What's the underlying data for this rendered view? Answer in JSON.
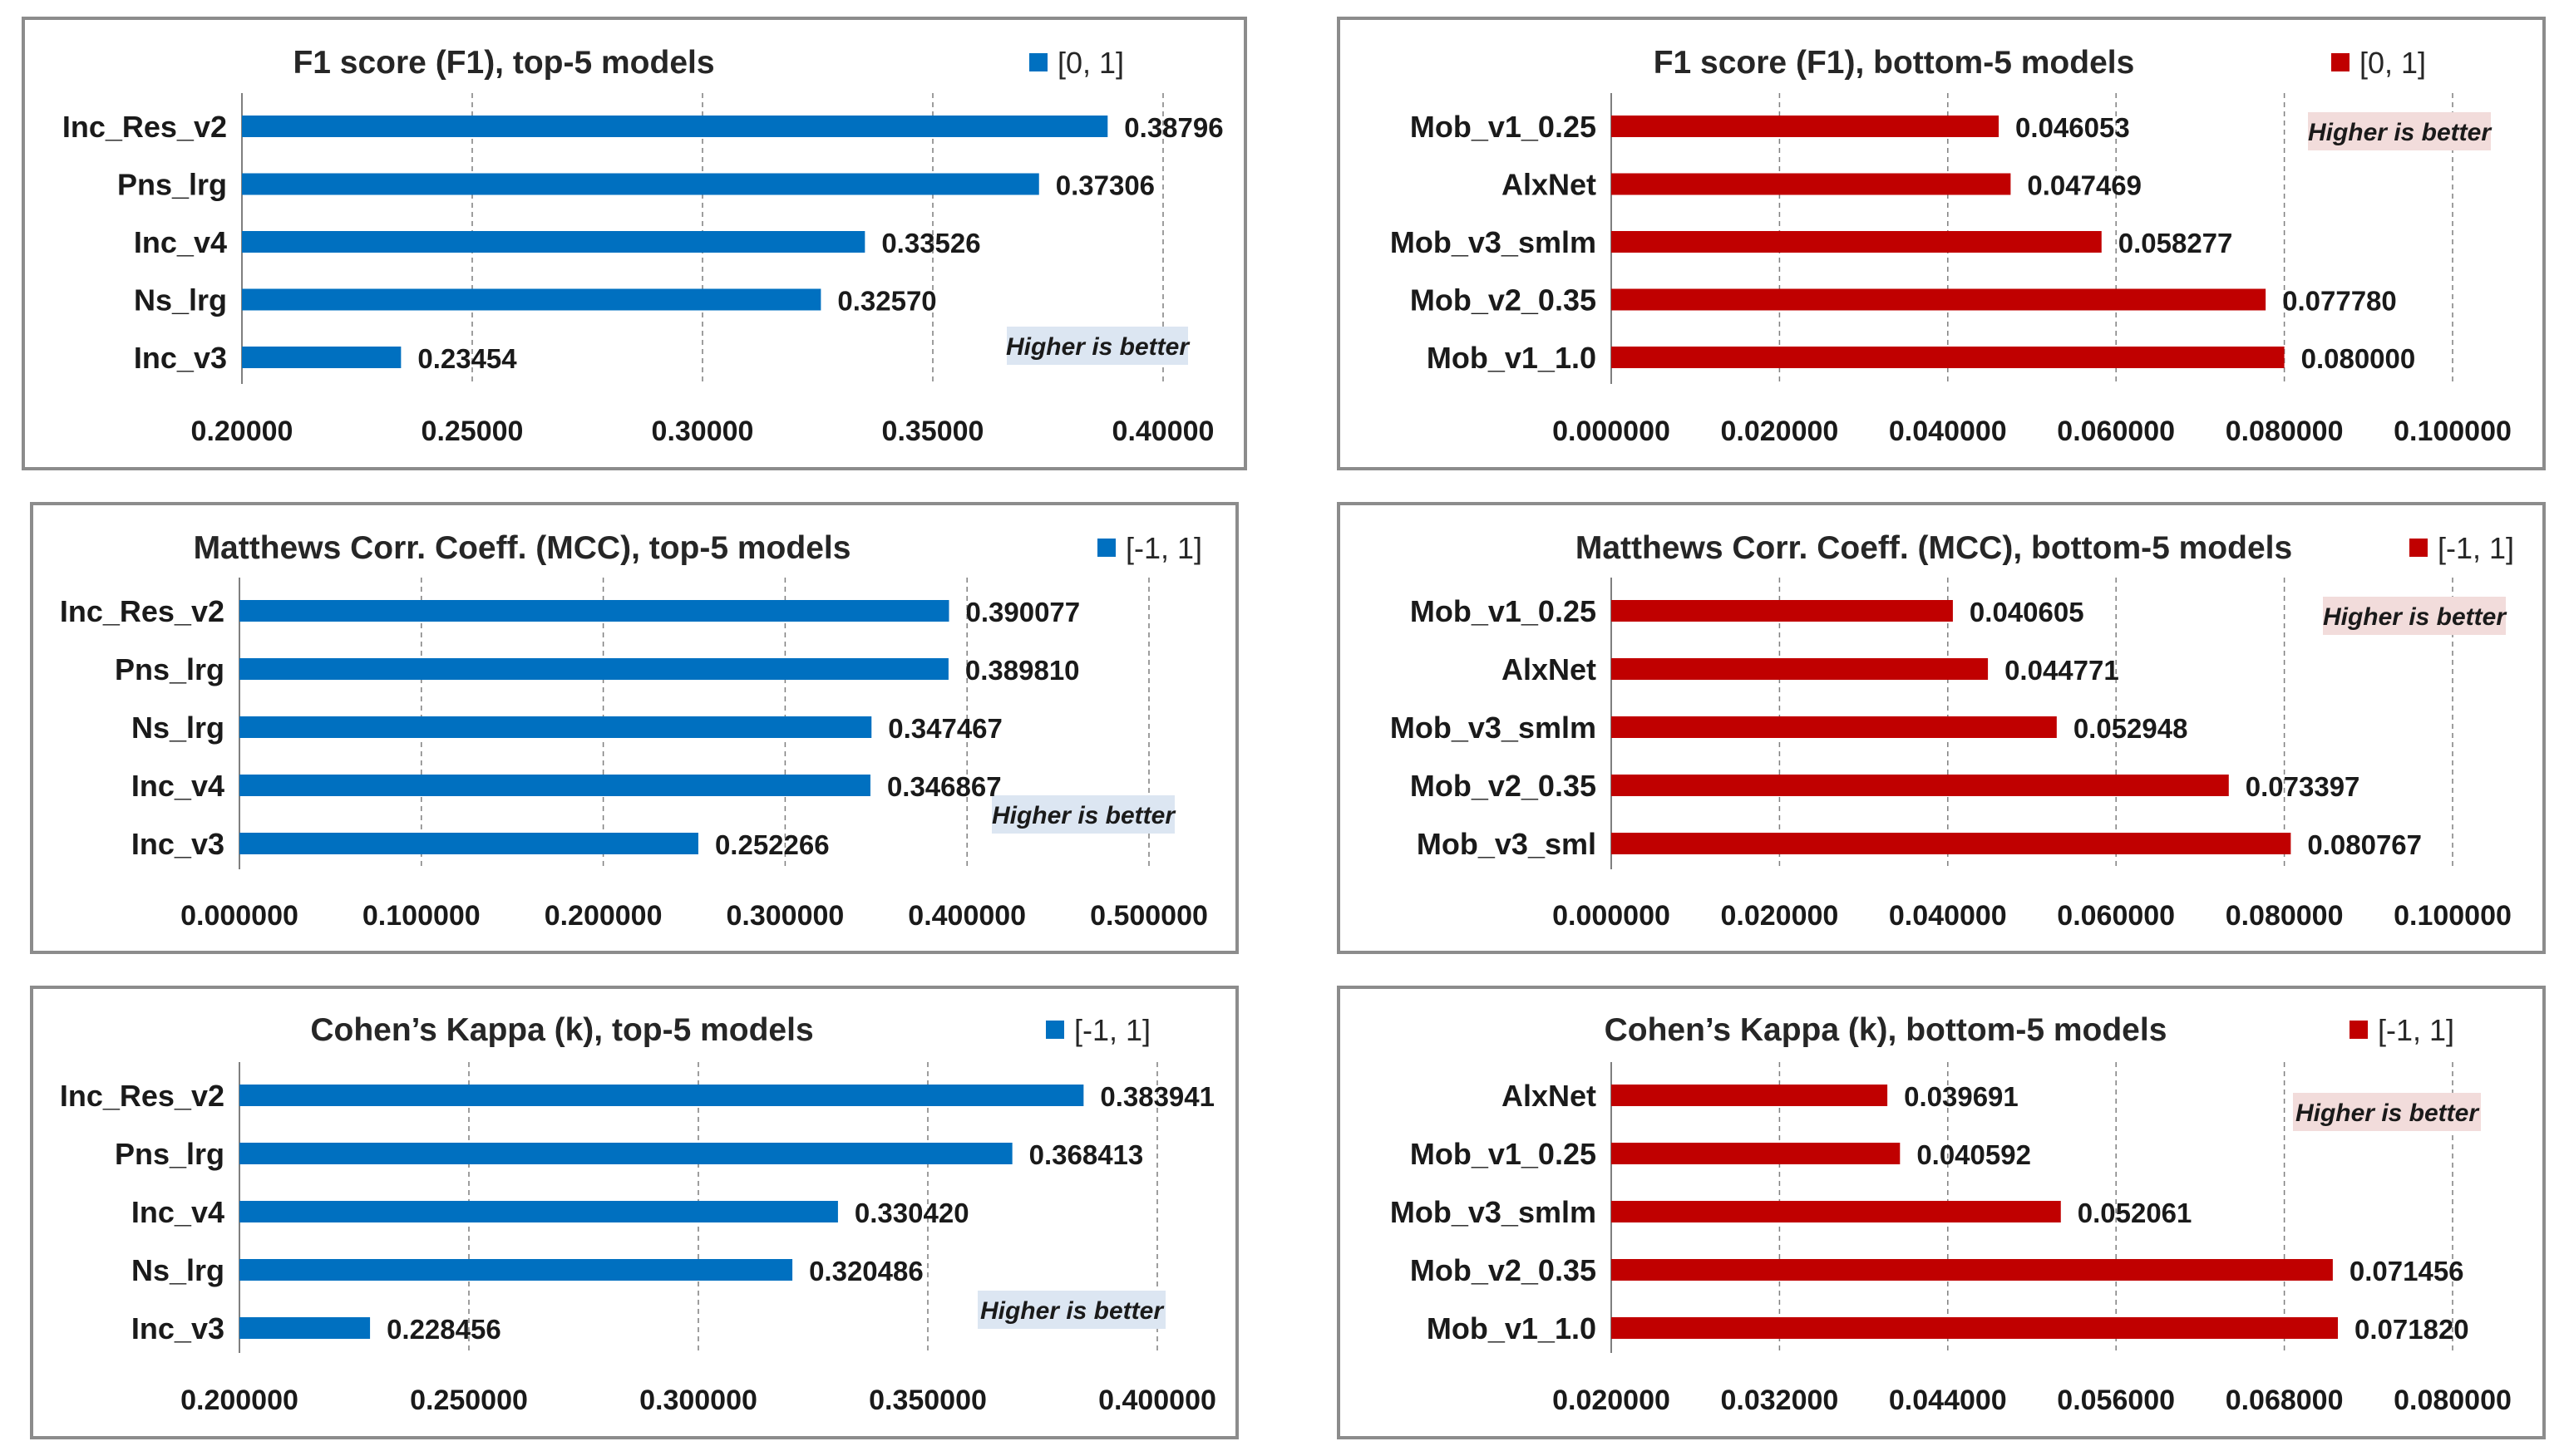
{
  "chart_data": [
    {
      "type": "bar",
      "orientation": "horizontal",
      "title": "F1 score (F1), top-5 models",
      "legend": "[0, 1]",
      "note": "Higher is better",
      "color": "#0070c0",
      "categories": [
        "Inc_Res_v2",
        "Pns_lrg",
        "Inc_v4",
        "Ns_lrg",
        "Inc_v3"
      ],
      "values": [
        0.38796,
        0.37306,
        0.33526,
        0.3257,
        0.23454
      ],
      "value_labels": [
        "0.38796",
        "0.37306",
        "0.33526",
        "0.32570",
        "0.23454"
      ],
      "xlim": [
        0.2,
        0.4
      ],
      "ticks": [
        0.2,
        0.25,
        0.3,
        0.35,
        0.4
      ],
      "tick_labels": [
        "0.20000",
        "0.25000",
        "0.30000",
        "0.35000",
        "0.40000"
      ]
    },
    {
      "type": "bar",
      "orientation": "horizontal",
      "title": "F1 score (F1), bottom-5 models",
      "legend": "[0, 1]",
      "note": "Higher is better",
      "color": "#c00000",
      "categories": [
        "Mob_v1_0.25",
        "AlxNet",
        "Mob_v3_smlm",
        "Mob_v2_0.35",
        "Mob_v1_1.0"
      ],
      "values": [
        0.046053,
        0.047469,
        0.058277,
        0.07778,
        0.08
      ],
      "value_labels": [
        "0.046053",
        "0.047469",
        "0.058277",
        "0.077780",
        "0.080000"
      ],
      "xlim": [
        0,
        0.1
      ],
      "ticks": [
        0,
        0.02,
        0.04,
        0.06,
        0.08,
        0.1
      ],
      "tick_labels": [
        "0.000000",
        "0.020000",
        "0.040000",
        "0.060000",
        "0.080000",
        "0.100000"
      ]
    },
    {
      "type": "bar",
      "orientation": "horizontal",
      "title": "Matthews Corr. Coeff. (MCC), top-5 models",
      "legend": "[-1, 1]",
      "note": "Higher is better",
      "color": "#0070c0",
      "categories": [
        "Inc_Res_v2",
        "Pns_lrg",
        "Ns_lrg",
        "Inc_v4",
        "Inc_v3"
      ],
      "values": [
        0.390077,
        0.38981,
        0.347467,
        0.346867,
        0.252266
      ],
      "value_labels": [
        "0.390077",
        "0.389810",
        "0.347467",
        "0.346867",
        "0.252266"
      ],
      "xlim": [
        0,
        0.5
      ],
      "ticks": [
        0,
        0.1,
        0.2,
        0.3,
        0.4,
        0.5
      ],
      "tick_labels": [
        "0.000000",
        "0.100000",
        "0.200000",
        "0.300000",
        "0.400000",
        "0.500000"
      ]
    },
    {
      "type": "bar",
      "orientation": "horizontal",
      "title": "Matthews Corr. Coeff. (MCC), bottom-5 models",
      "legend": "[-1, 1]",
      "note": "Higher is better",
      "color": "#c00000",
      "categories": [
        "Mob_v1_0.25",
        "AlxNet",
        "Mob_v3_smlm",
        "Mob_v2_0.35",
        "Mob_v3_sml"
      ],
      "values": [
        0.040605,
        0.044771,
        0.052948,
        0.073397,
        0.080767
      ],
      "value_labels": [
        "0.040605",
        "0.044771",
        "0.052948",
        "0.073397",
        "0.080767"
      ],
      "xlim": [
        0,
        0.1
      ],
      "ticks": [
        0,
        0.02,
        0.04,
        0.06,
        0.08,
        0.1
      ],
      "tick_labels": [
        "0.000000",
        "0.020000",
        "0.040000",
        "0.060000",
        "0.080000",
        "0.100000"
      ]
    },
    {
      "type": "bar",
      "orientation": "horizontal",
      "title": "Cohen’s Kappa  (k), top-5 models",
      "legend": "[-1, 1]",
      "note": "Higher is better",
      "color": "#0070c0",
      "categories": [
        "Inc_Res_v2",
        "Pns_lrg",
        "Inc_v4",
        "Ns_lrg",
        "Inc_v3"
      ],
      "values": [
        0.383941,
        0.368413,
        0.33042,
        0.320486,
        0.228456
      ],
      "value_labels": [
        "0.383941",
        "0.368413",
        "0.330420",
        "0.320486",
        "0.228456"
      ],
      "xlim": [
        0.2,
        0.4
      ],
      "ticks": [
        0.2,
        0.25,
        0.3,
        0.35,
        0.4
      ],
      "tick_labels": [
        "0.200000",
        "0.250000",
        "0.300000",
        "0.350000",
        "0.400000"
      ]
    },
    {
      "type": "bar",
      "orientation": "horizontal",
      "title": "Cohen’s Kappa  (k), bottom-5 models",
      "legend": "[-1, 1]",
      "note": "Higher is better",
      "color": "#c00000",
      "categories": [
        "AlxNet",
        "Mob_v1_0.25",
        "Mob_v3_smlm",
        "Mob_v2_0.35",
        "Mob_v1_1.0"
      ],
      "values": [
        0.039691,
        0.040592,
        0.052061,
        0.071456,
        0.07182
      ],
      "value_labels": [
        "0.039691",
        "0.040592",
        "0.052061",
        "0.071456",
        "0.071820"
      ],
      "xlim": [
        0.02,
        0.08
      ],
      "ticks": [
        0.02,
        0.032,
        0.044,
        0.056,
        0.068,
        0.08
      ],
      "tick_labels": [
        "0.020000",
        "0.032000",
        "0.044000",
        "0.056000",
        "0.068000",
        "0.080000"
      ]
    }
  ]
}
